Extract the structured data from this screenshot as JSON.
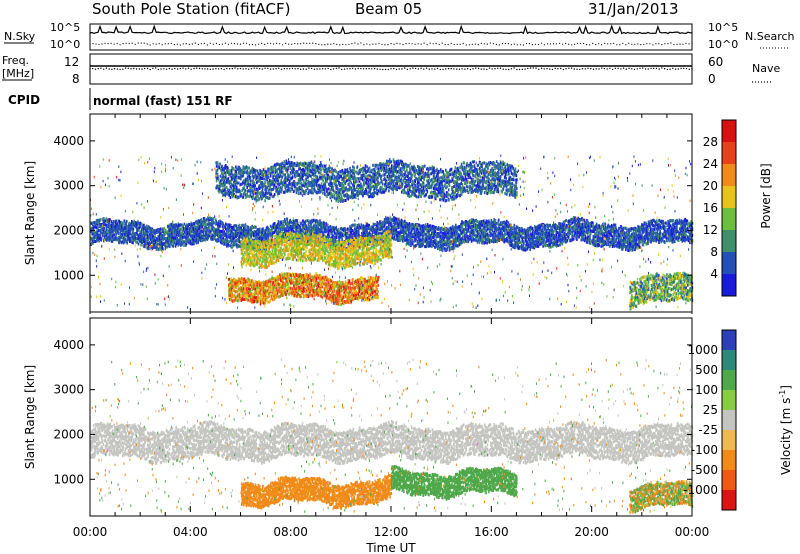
{
  "header": {
    "station": "South Pole Station (fitACF)",
    "beam": "Beam 05",
    "date": "31/Jan/2013"
  },
  "sky_panel": {
    "left_label": "N.Sky",
    "left_ticks": [
      "10^5",
      "10^0"
    ],
    "right_label": "N.Search",
    "right_ticks": [
      "10^5",
      "10^0"
    ]
  },
  "freq_panel": {
    "left_label_line1": "Freq.",
    "left_label_line2": "[MHz]",
    "left_ticks": [
      "12",
      "8"
    ],
    "right_label": "Nave",
    "right_ticks": [
      "60",
      "0"
    ]
  },
  "cpid": {
    "label": "CPID",
    "value": "normal (fast) 151 RF"
  },
  "chart_data": [
    {
      "type": "heatmap",
      "name": "Power",
      "ylabel": "Slant Range [km]",
      "yticks": [
        "1000",
        "2000",
        "3000",
        "4000"
      ],
      "ylim": [
        180,
        4600
      ],
      "colorbar_label": "Power [dB]",
      "colorbar_ticks": [
        "4",
        "8",
        "12",
        "16",
        "20",
        "24",
        "28"
      ],
      "colorbar_colors": [
        "#1a1adc",
        "#2450b8",
        "#3f8f6a",
        "#6cbf3c",
        "#e8c41a",
        "#f08a18",
        "#e84018",
        "#d81010"
      ],
      "bands": [
        {
          "range_km": [
            1700,
            2200
          ],
          "power_db": [
            2,
            10
          ],
          "extent_h": [
            0,
            24
          ]
        },
        {
          "range_km": [
            500,
            1000
          ],
          "power_db": [
            14,
            30
          ],
          "extent_h": [
            5.5,
            11.5
          ]
        },
        {
          "range_km": [
            1300,
            1900
          ],
          "power_db": [
            12,
            22
          ],
          "extent_h": [
            6,
            12
          ]
        },
        {
          "range_km": [
            2800,
            3500
          ],
          "power_db": [
            2,
            12
          ],
          "extent_h": [
            5,
            17
          ]
        },
        {
          "range_km": [
            400,
            1000
          ],
          "power_db": [
            6,
            20
          ],
          "extent_h": [
            21.5,
            24
          ]
        }
      ]
    },
    {
      "type": "heatmap",
      "name": "Velocity",
      "ylabel": "Slant Range [km]",
      "yticks": [
        "1000",
        "2000",
        "3000",
        "4000"
      ],
      "ylim": [
        180,
        4600
      ],
      "colorbar_label_prefix": "Velocity  [m s",
      "colorbar_label_exp": "-1",
      "colorbar_label_suffix": "]",
      "colorbar_ticks": [
        "1000",
        "500",
        "100",
        "25",
        "-25",
        "-100",
        "-500",
        "-1000"
      ],
      "colorbar_colors": [
        "#2a3fb8",
        "#2b8a7a",
        "#4fa84a",
        "#88cc44",
        "#c4c4c0",
        "#f0b850",
        "#f08a18",
        "#ee5a14",
        "#dc1414"
      ],
      "bands": [
        {
          "range_km": [
            1500,
            2200
          ],
          "velocity_ms": [
            -25,
            25
          ],
          "extent_h": [
            0,
            24
          ]
        },
        {
          "range_km": [
            500,
            1000
          ],
          "velocity_ms": [
            -500,
            -100
          ],
          "extent_h": [
            6,
            12
          ]
        },
        {
          "range_km": [
            700,
            1200
          ],
          "velocity_ms": [
            100,
            500
          ],
          "extent_h": [
            12,
            17
          ]
        },
        {
          "range_km": [
            400,
            900
          ],
          "velocity_ms": [
            -500,
            500
          ],
          "extent_h": [
            21.5,
            24
          ]
        }
      ]
    }
  ],
  "time_axis": {
    "ticks": [
      "00:00",
      "04:00",
      "08:00",
      "12:00",
      "16:00",
      "20:00",
      "00:00"
    ],
    "label": "Time UT",
    "xlim_hours": [
      0,
      24
    ]
  }
}
